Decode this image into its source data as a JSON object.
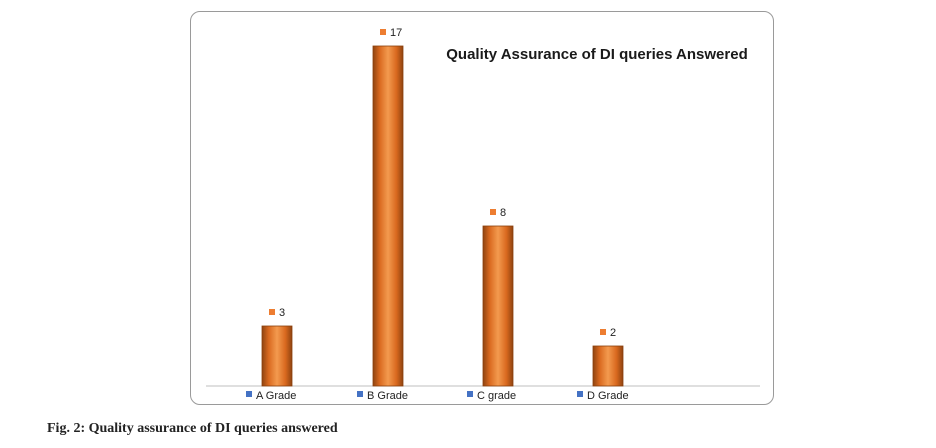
{
  "chart_data": {
    "type": "bar",
    "title": "Quality Assurance of DI queries Answered",
    "categories": [
      "A Grade",
      "B Grade",
      "C grade",
      "D Grade"
    ],
    "values": [
      3,
      17,
      8,
      2
    ],
    "data_labels": [
      "3",
      "17",
      "8",
      "2"
    ],
    "ylim": [
      0,
      17
    ],
    "grid": false,
    "legend": "none",
    "bar_color": "#e07b2a",
    "bar_edge_color": "#8a3f0c",
    "label_marker_color": "#ed7d31",
    "category_marker_color": "#4472c4"
  },
  "caption": "Fig. 2: Quality assurance of DI queries answered"
}
